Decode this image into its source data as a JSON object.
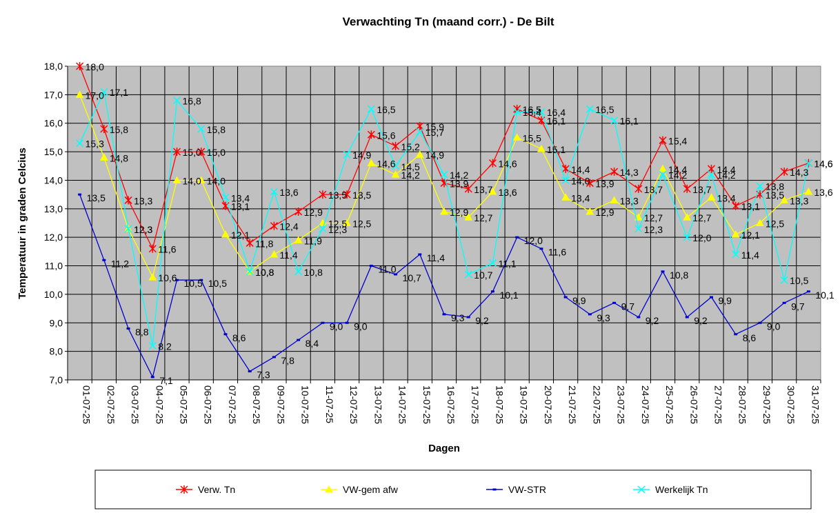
{
  "chart_data": {
    "type": "line",
    "title": "Verwachting Tn (maand corr.) - De Bilt",
    "xlabel": "Dagen",
    "ylabel": "Temperatuur in graden Celcius",
    "ylim": [
      7.0,
      18.0
    ],
    "y_ticks": [
      "7,0",
      "8,0",
      "9,0",
      "10,0",
      "11,0",
      "12,0",
      "13,0",
      "14,0",
      "15,0",
      "16,0",
      "17,0",
      "18,0"
    ],
    "grid": true,
    "legend_position": "bottom",
    "categories": [
      "01-07-25",
      "02-07-25",
      "03-07-25",
      "04-07-25",
      "05-07-25",
      "06-07-25",
      "07-07-25",
      "08-07-25",
      "09-07-25",
      "10-07-25",
      "11-07-25",
      "12-07-25",
      "13-07-25",
      "14-07-25",
      "15-07-25",
      "16-07-25",
      "17-07-25",
      "18-07-25",
      "19-07-25",
      "20-07-25",
      "21-07-25",
      "22-07-25",
      "23-07-25",
      "24-07-25",
      "25-07-25",
      "26-07-25",
      "27-07-25",
      "28-07-25",
      "29-07-25",
      "30-07-25",
      "31-07-25"
    ],
    "series": [
      {
        "name": "Verw. Tn",
        "color": "#ff0000",
        "marker": "star",
        "values": [
          18.0,
          15.8,
          13.3,
          11.6,
          15.0,
          15.0,
          13.1,
          11.8,
          12.4,
          12.9,
          13.5,
          13.5,
          15.6,
          15.2,
          15.9,
          13.9,
          13.7,
          14.6,
          16.5,
          16.1,
          14.4,
          13.9,
          14.3,
          13.7,
          15.4,
          13.7,
          14.4,
          13.1,
          13.5,
          14.3,
          14.6
        ]
      },
      {
        "name": "VW-gem afw",
        "color": "#ffff00",
        "marker": "triangle",
        "values": [
          17.0,
          14.8,
          12.3,
          10.6,
          14.0,
          14.0,
          12.1,
          10.8,
          11.4,
          11.9,
          12.5,
          12.5,
          14.6,
          14.2,
          14.9,
          12.9,
          12.7,
          13.6,
          15.5,
          15.1,
          13.4,
          12.9,
          13.3,
          12.7,
          14.4,
          12.7,
          13.4,
          12.1,
          12.5,
          13.3,
          13.6
        ]
      },
      {
        "name": "VW-STR",
        "color": "#0000cc",
        "marker": "dash",
        "values": [
          13.5,
          11.2,
          8.8,
          7.1,
          10.5,
          10.5,
          8.6,
          7.3,
          7.8,
          8.4,
          9.0,
          9.0,
          11.0,
          10.7,
          11.4,
          9.3,
          9.2,
          10.1,
          12.0,
          11.6,
          9.9,
          9.3,
          9.7,
          9.2,
          10.8,
          9.2,
          9.9,
          8.6,
          9.0,
          9.7,
          10.1
        ]
      },
      {
        "name": "Werkelijk Tn",
        "color": "#00ffff",
        "marker": "x",
        "values": [
          15.3,
          17.1,
          12.3,
          8.2,
          16.8,
          15.8,
          13.4,
          10.8,
          13.6,
          10.8,
          12.3,
          14.9,
          16.5,
          14.5,
          15.7,
          14.2,
          10.7,
          11.1,
          16.4,
          16.4,
          14.0,
          16.5,
          16.1,
          12.3,
          14.2,
          12.0,
          14.2,
          11.4,
          13.8,
          10.5,
          14.6
        ]
      }
    ]
  }
}
